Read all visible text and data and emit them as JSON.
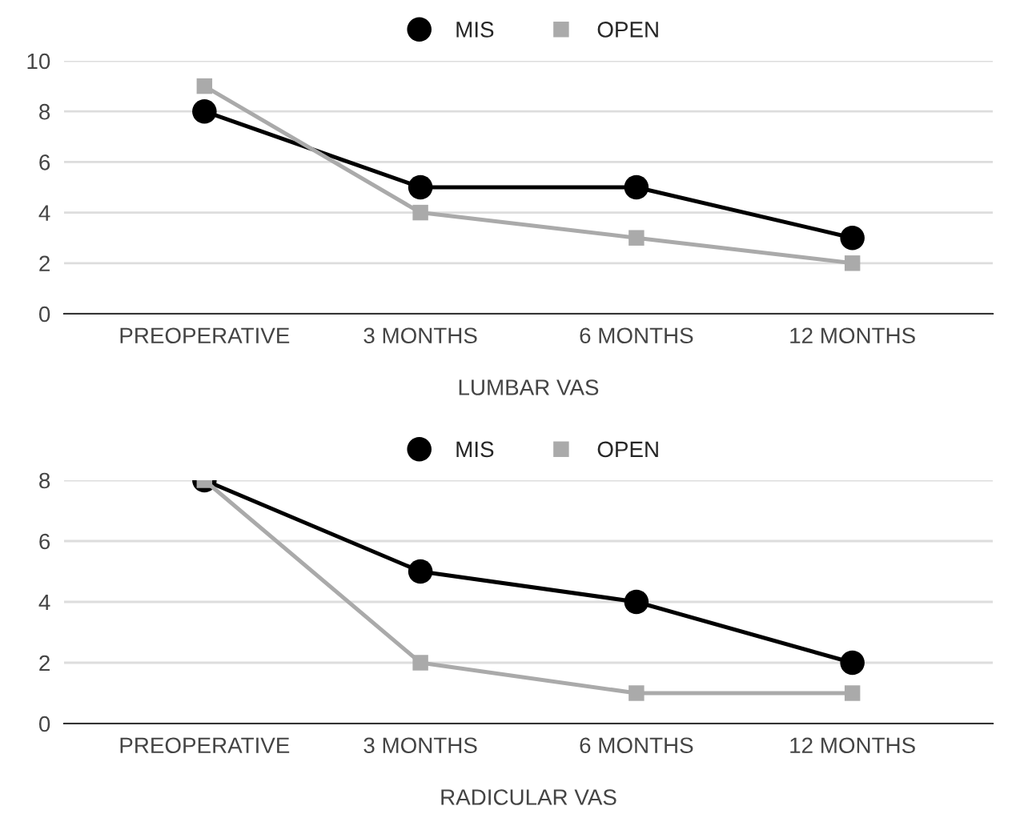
{
  "chart_data": [
    {
      "type": "line",
      "xlabel": "LUMBAR VAS",
      "categories": [
        "PREOPERATIVE",
        "3 MONTHS",
        "6 MONTHS",
        "12 MONTHS"
      ],
      "series": [
        {
          "name": "MIS",
          "color": "#000000",
          "marker": "circle",
          "values": [
            8,
            5,
            5,
            3
          ]
        },
        {
          "name": "OPEN",
          "color": "#aaaaaa",
          "marker": "square",
          "values": [
            9,
            4,
            3,
            2
          ]
        }
      ],
      "ylim": [
        0,
        10
      ],
      "yticks": [
        0,
        2,
        4,
        6,
        8,
        10
      ],
      "grid": "y",
      "legend": "top"
    },
    {
      "type": "line",
      "xlabel": "RADICULAR VAS",
      "categories": [
        "PREOPERATIVE",
        "3 MONTHS",
        "6 MONTHS",
        "12 MONTHS"
      ],
      "series": [
        {
          "name": "MIS",
          "color": "#000000",
          "marker": "circle",
          "values": [
            8,
            5,
            4,
            2
          ]
        },
        {
          "name": "OPEN",
          "color": "#aaaaaa",
          "marker": "square",
          "values": [
            8,
            2,
            1,
            1
          ]
        }
      ],
      "ylim": [
        0,
        8
      ],
      "yticks": [
        0,
        2,
        4,
        6,
        8
      ],
      "grid": "y",
      "legend": "top"
    }
  ]
}
